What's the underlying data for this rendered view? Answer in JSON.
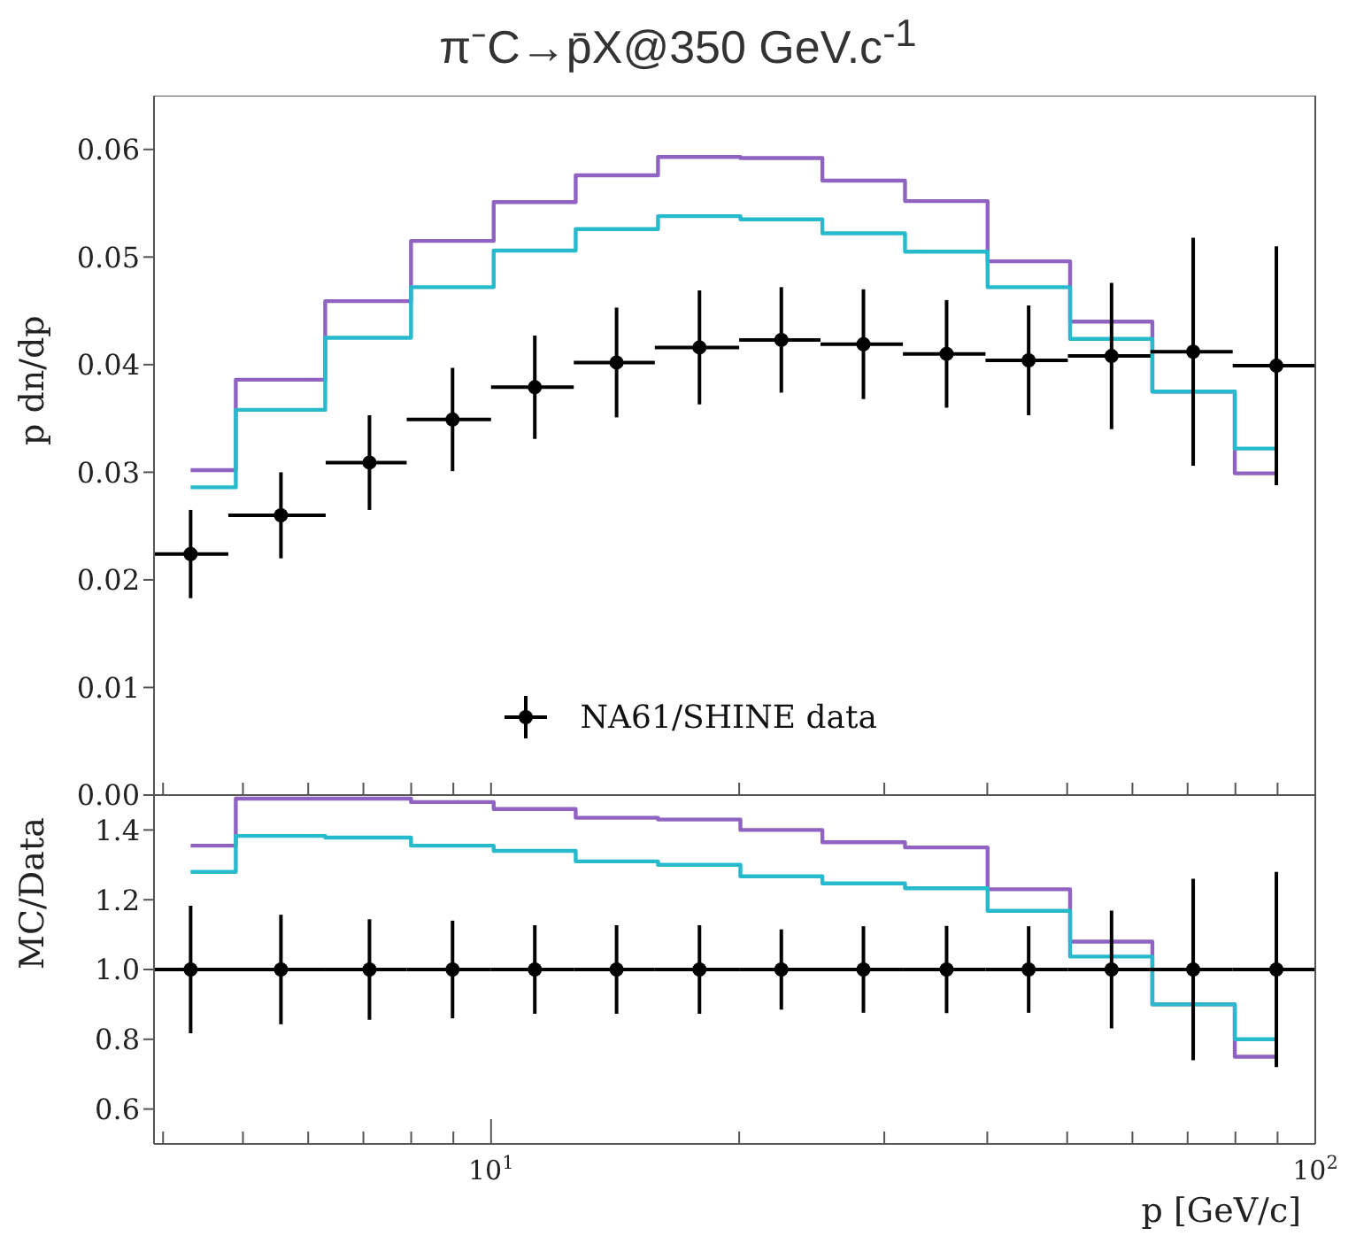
{
  "chart_data": [
    {
      "type": "line",
      "title": "π⁻C→p̄X@350 GeV.c$^{-1}$",
      "ylabel": "p dn/dp",
      "log": "x",
      "grid": false,
      "legend": "bottom",
      "tick_labels": "y",
      "xlim": [
        3.9,
        100
      ],
      "xticks": [
        4,
        5,
        6,
        7,
        8,
        9,
        10,
        20,
        30,
        40,
        50,
        60,
        70,
        80,
        90,
        100
      ],
      "ylim": [
        0,
        0.065
      ],
      "yticks": [
        {
          "value": 0,
          "label": "0.00"
        },
        {
          "value": 0.01,
          "label": "0.01"
        },
        {
          "value": 0.02,
          "label": "0.02"
        },
        {
          "value": 0.03,
          "label": "0.03"
        },
        {
          "value": 0.04,
          "label": "0.04"
        },
        {
          "value": 0.05,
          "label": "0.05"
        },
        {
          "value": 0.06,
          "label": "0.06"
        }
      ],
      "series": [
        {
          "type": "step",
          "color": "#9063c2",
          "x": [
            4.32,
            5.56,
            7.12,
            8.98,
            11.3,
            14.2,
            17.9,
            22.5,
            28.3,
            35.7,
            44.9,
            56.6,
            71.1,
            89.7
          ],
          "values": [
            0.0302,
            0.0386,
            0.0459,
            0.0515,
            0.0551,
            0.0576,
            0.0593,
            0.0592,
            0.0571,
            0.0552,
            0.0496,
            0.044,
            0.0375,
            0.0299
          ]
        },
        {
          "type": "step",
          "color": "#27b9cc",
          "x": [
            4.32,
            5.56,
            7.12,
            8.98,
            11.3,
            14.2,
            17.9,
            22.5,
            28.3,
            35.7,
            44.9,
            56.6,
            71.1,
            89.7
          ],
          "values": [
            0.0286,
            0.0358,
            0.0425,
            0.0472,
            0.0506,
            0.0526,
            0.0538,
            0.0535,
            0.0522,
            0.0505,
            0.0472,
            0.0424,
            0.0375,
            0.0322
          ]
        },
        {
          "type": "scatter",
          "name": "NA61/SHINE data",
          "color": "#000000",
          "marker": "circle",
          "x": [
            4.32,
            5.56,
            7.12,
            8.98,
            11.3,
            14.2,
            17.9,
            22.5,
            28.3,
            35.7,
            44.9,
            56.6,
            71.1,
            89.7
          ],
          "values": [
            0.0224,
            0.026,
            0.0309,
            0.0349,
            0.0379,
            0.0402,
            0.0416,
            0.0423,
            0.0419,
            0.041,
            0.0404,
            0.0408,
            0.0412,
            0.0399
          ],
          "errors": [
            0.0041,
            0.004,
            0.0044,
            0.0048,
            0.0048,
            0.0051,
            0.0053,
            0.0049,
            0.0051,
            0.005,
            0.0051,
            0.0068,
            0.0106,
            0.0111
          ],
          "xerrors": [
            [
              3.9,
              4.8
            ],
            [
              4.8,
              6.3
            ],
            [
              6.3,
              7.9
            ],
            [
              7.9,
              10
            ],
            [
              10,
              12.6
            ],
            [
              12.6,
              15.8
            ],
            [
              15.8,
              20
            ],
            [
              20,
              25.1
            ],
            [
              25.1,
              31.6
            ],
            [
              31.6,
              39.8
            ],
            [
              39.8,
              50.1
            ],
            [
              50.1,
              63.1
            ],
            [
              63.1,
              79.4
            ],
            [
              79.4,
              100
            ]
          ]
        }
      ]
    },
    {
      "type": "line",
      "xlabel": "p [GeV/c]",
      "ylabel": "MC/Data",
      "log": "x",
      "grid": false,
      "xlim": [
        3.9,
        100
      ],
      "xticks": [
        {
          "value": 4,
          "label": null
        },
        {
          "value": 5,
          "label": null
        },
        {
          "value": 6,
          "label": null
        },
        {
          "value": 7,
          "label": null
        },
        {
          "value": 8,
          "label": null
        },
        {
          "value": 9,
          "label": null
        },
        {
          "value": 10,
          "label": "10$^{1}$"
        },
        {
          "value": 20,
          "label": null
        },
        {
          "value": 30,
          "label": null
        },
        {
          "value": 40,
          "label": null
        },
        {
          "value": 50,
          "label": null
        },
        {
          "value": 60,
          "label": null
        },
        {
          "value": 70,
          "label": null
        },
        {
          "value": 80,
          "label": null
        },
        {
          "value": 90,
          "label": null
        },
        {
          "value": 100,
          "label": "10$^{2}$"
        }
      ],
      "ylim": [
        0.5,
        1.5
      ],
      "yticks": [
        0.6,
        0.8,
        {
          "value": 1,
          "label": "1.0"
        },
        1.2,
        1.4
      ],
      "series": [
        {
          "type": "step",
          "color": "#9063c2",
          "x": [
            4.32,
            5.56,
            7.12,
            8.98,
            11.3,
            14.2,
            17.9,
            22.5,
            28.3,
            35.7,
            44.9,
            56.6,
            71.1,
            89.7
          ],
          "values": [
            1.355,
            1.49,
            1.49,
            1.48,
            1.46,
            1.435,
            1.43,
            1.4,
            1.365,
            1.35,
            1.23,
            1.08,
            0.9,
            0.75
          ]
        },
        {
          "type": "step",
          "color": "#27b9cc",
          "x": [
            4.32,
            5.56,
            7.12,
            8.98,
            11.3,
            14.2,
            17.9,
            22.5,
            28.3,
            35.7,
            44.9,
            56.6,
            71.1,
            89.7
          ],
          "values": [
            1.28,
            1.383,
            1.378,
            1.355,
            1.34,
            1.31,
            1.3,
            1.267,
            1.247,
            1.233,
            1.168,
            1.037,
            0.9,
            0.8
          ]
        },
        {
          "type": "scatter",
          "color": "#000000",
          "marker": "circle",
          "x": [
            4.32,
            5.56,
            7.12,
            8.98,
            11.3,
            14.2,
            17.9,
            22.5,
            28.3,
            35.7,
            44.9,
            56.6,
            71.1,
            89.7
          ],
          "values": [
            1,
            1,
            1,
            1,
            1,
            1,
            1,
            1,
            1,
            1,
            1,
            1,
            1,
            1
          ],
          "errors": [
            0.183,
            0.157,
            0.144,
            0.14,
            0.127,
            0.127,
            0.127,
            0.115,
            0.124,
            0.125,
            0.124,
            0.169,
            0.26,
            0.28
          ],
          "xerrors": [
            [
              3.9,
              4.8
            ],
            [
              4.8,
              6.3
            ],
            [
              6.3,
              7.9
            ],
            [
              7.9,
              10
            ],
            [
              10,
              12.6
            ],
            [
              12.6,
              15.8
            ],
            [
              15.8,
              20
            ],
            [
              20,
              25.1
            ],
            [
              25.1,
              31.6
            ],
            [
              31.6,
              39.8
            ],
            [
              39.8,
              50.1
            ],
            [
              50.1,
              63.1
            ],
            [
              63.1,
              79.4
            ],
            [
              79.4,
              100
            ]
          ]
        }
      ]
    }
  ]
}
